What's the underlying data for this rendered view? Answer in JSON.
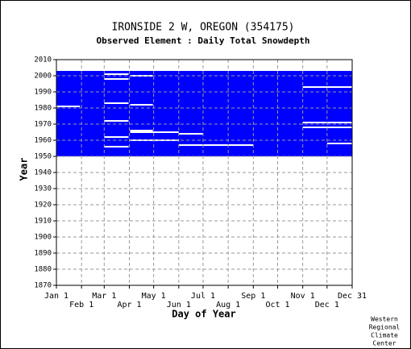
{
  "chart_data": {
    "type": "availability",
    "title": "IRONSIDE 2 W, OREGON   (354175)",
    "subtitle": "Observed Element : Daily Total Snowdepth",
    "x_label": "Day of Year",
    "y_label": "Year",
    "credit": [
      "Western",
      "Regional",
      "Climate",
      "Center"
    ],
    "color": "#0000ff",
    "gap_color": "#ffffff",
    "grid": true,
    "xlim": [
      1,
      366
    ],
    "ylim": [
      1870,
      2010
    ],
    "yticks": [
      1870,
      1880,
      1890,
      1900,
      1910,
      1920,
      1930,
      1940,
      1950,
      1960,
      1970,
      1980,
      1990,
      2000,
      2010
    ],
    "xticks": [
      {
        "value": 1,
        "label": "Jan 1"
      },
      {
        "value": 32,
        "label": "Feb 1"
      },
      {
        "value": 60,
        "label": "Mar 1"
      },
      {
        "value": 91,
        "label": "Apr 1"
      },
      {
        "value": 121,
        "label": "May 1"
      },
      {
        "value": 152,
        "label": "Jun 1"
      },
      {
        "value": 182,
        "label": "Jul 1"
      },
      {
        "value": 213,
        "label": "Aug 1"
      },
      {
        "value": 244,
        "label": "Sep 1"
      },
      {
        "value": 274,
        "label": "Oct 1"
      },
      {
        "value": 305,
        "label": "Nov 1"
      },
      {
        "value": 335,
        "label": "Dec 1"
      },
      {
        "value": 366,
        "label": "Dec 31"
      }
    ],
    "record": {
      "start_year": 1950,
      "end_year": 2003
    },
    "gaps": [
      [
        2001,
        60,
        90
      ],
      [
        1998,
        60,
        90
      ],
      [
        2000,
        92,
        120
      ],
      [
        1993,
        305,
        366
      ],
      [
        1983,
        60,
        90
      ],
      [
        1982,
        92,
        120
      ],
      [
        1981,
        1,
        30
      ],
      [
        1972,
        60,
        90
      ],
      [
        1971,
        305,
        366
      ],
      [
        1968,
        305,
        366
      ],
      [
        1966,
        92,
        120
      ],
      [
        1965,
        92,
        152
      ],
      [
        1964,
        152,
        182
      ],
      [
        1962,
        60,
        90
      ],
      [
        1960,
        92,
        152
      ],
      [
        1957,
        152,
        244
      ],
      [
        1956,
        60,
        90
      ],
      [
        1958,
        335,
        366
      ]
    ]
  }
}
